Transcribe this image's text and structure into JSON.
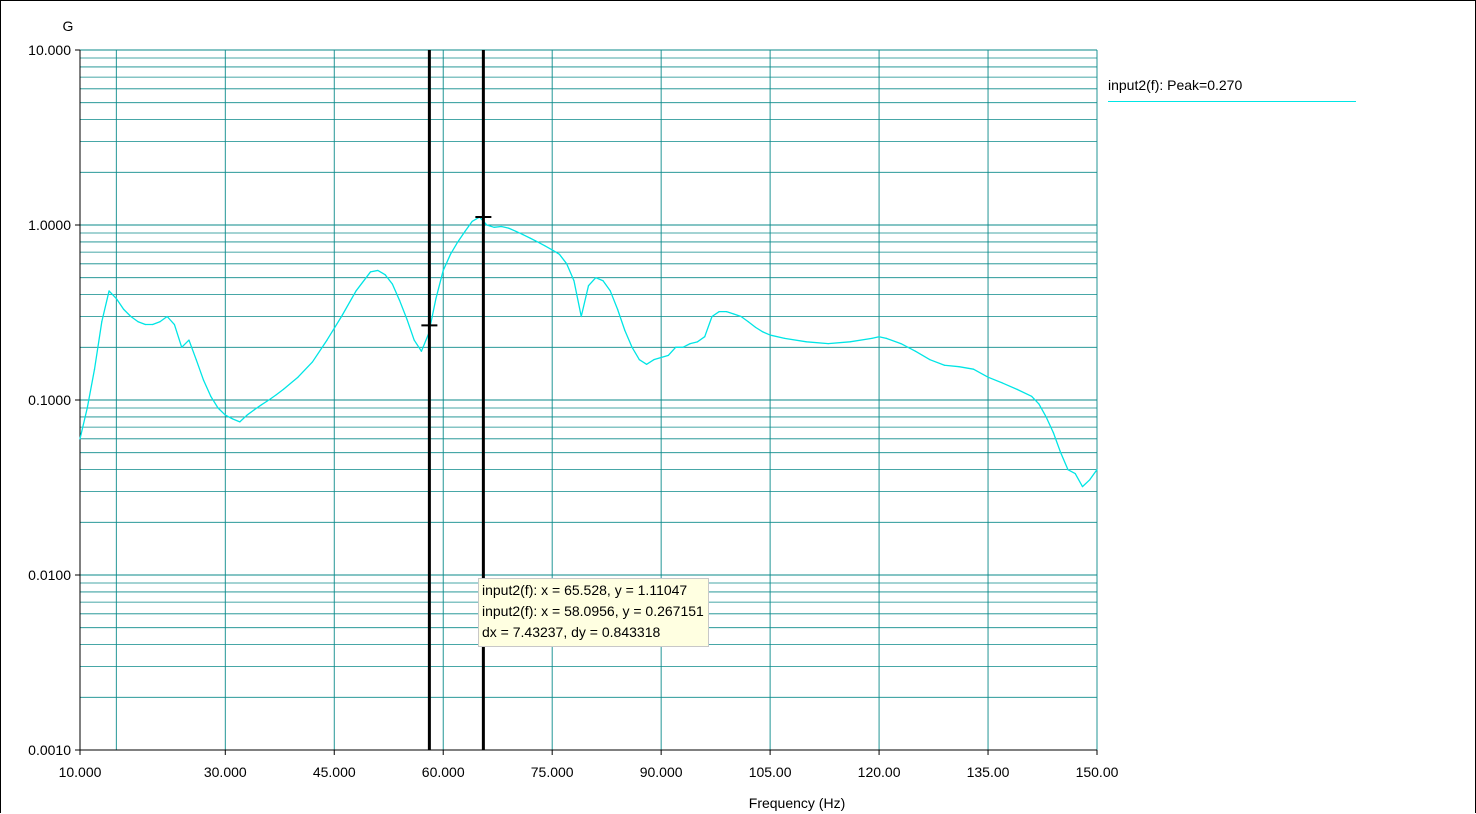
{
  "chart_data": {
    "type": "line",
    "ylabel": "G",
    "xlabel": "Frequency (Hz)",
    "yscale": "log",
    "ylim": [
      0.001,
      10
    ],
    "xlim": [
      10,
      150
    ],
    "y_ticks": [
      {
        "value": 10,
        "label": "10.000"
      },
      {
        "value": 1,
        "label": "1.0000"
      },
      {
        "value": 0.1,
        "label": "0.1000"
      },
      {
        "value": 0.01,
        "label": "0.0100"
      },
      {
        "value": 0.001,
        "label": "0.0010"
      }
    ],
    "x_ticks": [
      {
        "value": 10,
        "label": "10.000"
      },
      {
        "value": 30,
        "label": "30.000"
      },
      {
        "value": 45,
        "label": "45.000"
      },
      {
        "value": 60,
        "label": "60.000"
      },
      {
        "value": 75,
        "label": "75.000"
      },
      {
        "value": 90,
        "label": "90.000"
      },
      {
        "value": 105,
        "label": "105.00"
      },
      {
        "value": 120,
        "label": "120.00"
      },
      {
        "value": 135,
        "label": "135.00"
      },
      {
        "value": 150,
        "label": "150.00"
      }
    ],
    "x_gridlines": [
      15,
      30,
      45,
      60,
      75,
      90,
      105,
      120,
      135,
      150
    ],
    "grid": true,
    "legend_position": "right",
    "series": [
      {
        "name": "input2(f): Peak=0.270",
        "color": "#00e5e5",
        "x": [
          10,
          11,
          12,
          13,
          14,
          15,
          16,
          17,
          18,
          19,
          20,
          21,
          22,
          23,
          24,
          25,
          26,
          27,
          28,
          29,
          30,
          31,
          32,
          33,
          34,
          35,
          36,
          37,
          38,
          40,
          42,
          44,
          46,
          48,
          50,
          51,
          52,
          53,
          54,
          55,
          56,
          57,
          58,
          59,
          60,
          61,
          62,
          63,
          64,
          65,
          66,
          67,
          68,
          69,
          70,
          71,
          72,
          73,
          74,
          75,
          76,
          77,
          78,
          79,
          80,
          81,
          82,
          83,
          84,
          85,
          86,
          87,
          88,
          89,
          90,
          91,
          92,
          93,
          94,
          95,
          96,
          97,
          98,
          99,
          100,
          101,
          102,
          103,
          104,
          105,
          107,
          110,
          113,
          116,
          119,
          120,
          121,
          123,
          125,
          127,
          129,
          131,
          133,
          135,
          137,
          139,
          141,
          142,
          143,
          144,
          145,
          146,
          147,
          148,
          149,
          150
        ],
        "y": [
          0.06,
          0.09,
          0.15,
          0.28,
          0.42,
          0.38,
          0.33,
          0.3,
          0.28,
          0.27,
          0.27,
          0.28,
          0.3,
          0.27,
          0.2,
          0.22,
          0.17,
          0.13,
          0.105,
          0.09,
          0.082,
          0.078,
          0.075,
          0.082,
          0.088,
          0.094,
          0.1,
          0.107,
          0.115,
          0.135,
          0.165,
          0.22,
          0.3,
          0.42,
          0.54,
          0.55,
          0.52,
          0.46,
          0.37,
          0.29,
          0.22,
          0.19,
          0.24,
          0.38,
          0.55,
          0.68,
          0.8,
          0.92,
          1.05,
          1.11,
          1.0,
          0.97,
          0.98,
          0.96,
          0.92,
          0.88,
          0.84,
          0.8,
          0.76,
          0.72,
          0.68,
          0.6,
          0.48,
          0.3,
          0.45,
          0.5,
          0.48,
          0.42,
          0.33,
          0.25,
          0.2,
          0.17,
          0.16,
          0.17,
          0.175,
          0.18,
          0.2,
          0.2,
          0.21,
          0.215,
          0.23,
          0.3,
          0.32,
          0.32,
          0.31,
          0.3,
          0.28,
          0.26,
          0.245,
          0.235,
          0.225,
          0.215,
          0.21,
          0.215,
          0.225,
          0.23,
          0.225,
          0.21,
          0.19,
          0.17,
          0.158,
          0.155,
          0.15,
          0.135,
          0.125,
          0.115,
          0.105,
          0.095,
          0.08,
          0.065,
          0.05,
          0.04,
          0.038,
          0.032,
          0.035,
          0.04
        ]
      }
    ],
    "cursors": [
      {
        "x": 58.0956,
        "y": 0.267151
      },
      {
        "x": 65.528,
        "y": 1.11047
      }
    ]
  },
  "readout": {
    "line1": "input2(f): x = 65.528, y = 1.11047",
    "line2": "input2(f): x = 58.0956, y = 0.267151",
    "line3": "dx = 7.43237, dy = 0.843318"
  }
}
